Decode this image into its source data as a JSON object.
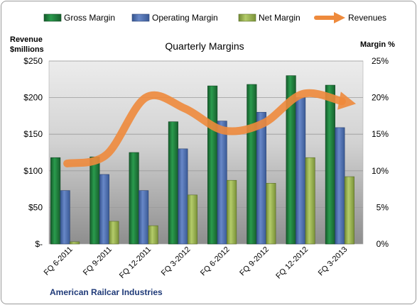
{
  "chart_data": {
    "type": "bar",
    "title": "Quarterly Margins",
    "footer": "American Railcar Industries",
    "y_left_label": [
      "Revenue",
      "$millions"
    ],
    "y_right_label": "Margin %",
    "y_left_ticks": [
      "$-",
      "$50",
      "$100",
      "$150",
      "$200",
      "$250"
    ],
    "y_right_ticks": [
      "0%",
      "5%",
      "10%",
      "15%",
      "20%",
      "25%"
    ],
    "ylim_left": [
      0,
      250
    ],
    "ylim_right": [
      0,
      25
    ],
    "categories": [
      "FQ 6-2011",
      "FQ 9-2011",
      "FQ 12-2011",
      "FQ 3-2012",
      "FQ 6-2012",
      "FQ 9-2012",
      "FQ 12-2012",
      "FQ 3-2013"
    ],
    "series": [
      {
        "name": "Gross Margin",
        "kind": "bar",
        "axis": "right",
        "color": "#1e7a3c",
        "values": [
          11.8,
          11.9,
          12.5,
          16.7,
          21.6,
          21.8,
          23.0,
          21.7
        ]
      },
      {
        "name": "Operating Margin",
        "kind": "bar",
        "axis": "right",
        "color": "#4a6fb5",
        "values": [
          7.3,
          9.5,
          7.3,
          13.0,
          16.8,
          18.0,
          20.0,
          15.9
        ]
      },
      {
        "name": "Net Margin",
        "kind": "bar",
        "axis": "right",
        "color": "#98b54a",
        "values": [
          0.3,
          3.1,
          2.5,
          6.7,
          8.7,
          8.3,
          11.8,
          9.2
        ]
      },
      {
        "name": "Revenues",
        "kind": "line",
        "axis": "left",
        "color": "#ee8a3c",
        "values": [
          110,
          122,
          200,
          185,
          155,
          165,
          205,
          195
        ]
      }
    ],
    "grid": true,
    "legend_position": "top"
  }
}
